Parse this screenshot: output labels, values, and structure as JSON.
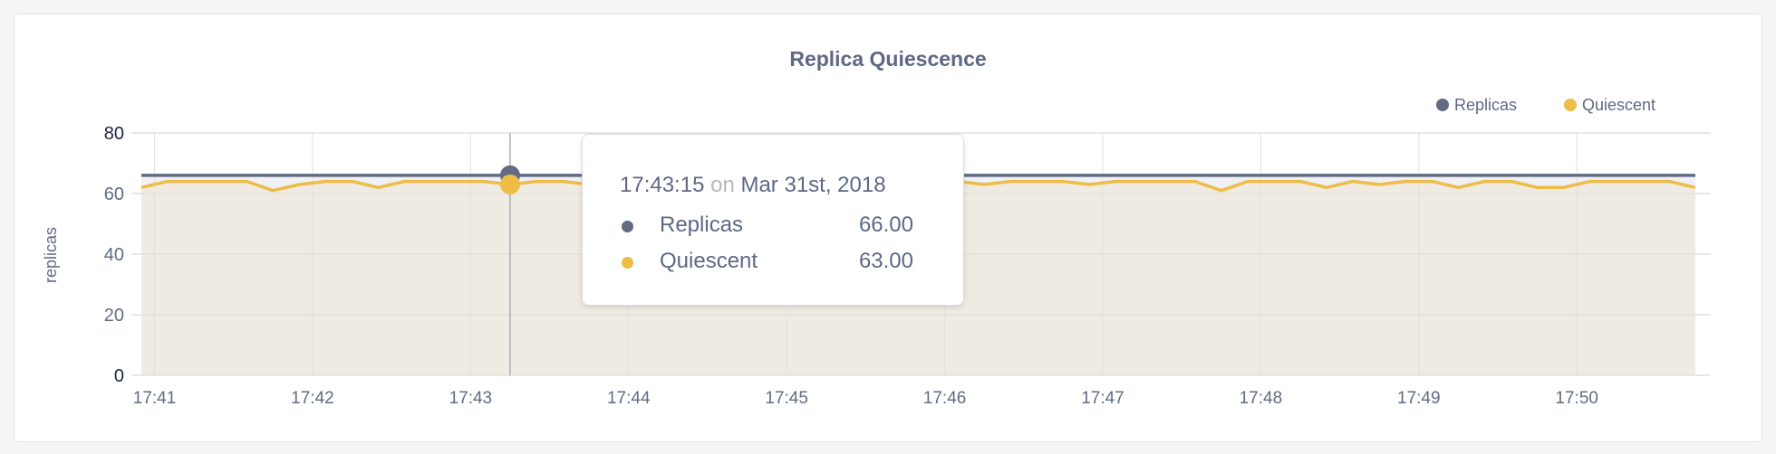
{
  "colors": {
    "replicas": "#636b84",
    "quiescent": "#eebd48",
    "replicas_fill": "#eff1f4",
    "quiescent_fill": "#efebe2",
    "title": "#5f6885"
  },
  "tooltip": {
    "time": "17:43:15",
    "on": "on",
    "date": "Mar 31st, 2018",
    "rows": [
      {
        "label": "Replicas",
        "value": "66.00"
      },
      {
        "label": "Quiescent",
        "value": "63.00"
      }
    ]
  },
  "chart_data": {
    "type": "line",
    "title": "Replica Quiescence",
    "ylabel": "replicas",
    "xlabel": "",
    "ylim": [
      0,
      80
    ],
    "yticks": [
      "0",
      "20",
      "40",
      "60",
      "80"
    ],
    "xticks": [
      "17:41",
      "17:42",
      "17:43",
      "17:44",
      "17:45",
      "17:46",
      "17:47",
      "17:48",
      "17:49",
      "17:50"
    ],
    "xlim": [
      "17:40:55",
      "17:50:45"
    ],
    "grid": true,
    "legend": "top-right",
    "x": [
      "17:40:55",
      "17:41:05",
      "17:41:15",
      "17:41:25",
      "17:41:35",
      "17:41:45",
      "17:41:55",
      "17:42:05",
      "17:42:15",
      "17:42:25",
      "17:42:35",
      "17:42:45",
      "17:42:55",
      "17:43:05",
      "17:43:15",
      "17:43:25",
      "17:43:35",
      "17:43:45",
      "17:43:55",
      "17:44:05",
      "17:44:15",
      "17:44:25",
      "17:44:35",
      "17:44:45",
      "17:44:55",
      "17:45:05",
      "17:45:15",
      "17:45:25",
      "17:45:35",
      "17:45:45",
      "17:45:55",
      "17:46:05",
      "17:46:15",
      "17:46:25",
      "17:46:35",
      "17:46:45",
      "17:46:55",
      "17:47:05",
      "17:47:15",
      "17:47:25",
      "17:47:35",
      "17:47:45",
      "17:47:55",
      "17:48:05",
      "17:48:15",
      "17:48:25",
      "17:48:35",
      "17:48:45",
      "17:48:55",
      "17:49:05",
      "17:49:15",
      "17:49:25",
      "17:49:35",
      "17:49:45",
      "17:49:55",
      "17:50:05",
      "17:50:15",
      "17:50:25",
      "17:50:35",
      "17:50:45"
    ],
    "hover_x": "17:43:15",
    "series": [
      {
        "name": "Replicas",
        "values": [
          66,
          66,
          66,
          66,
          66,
          66,
          66,
          66,
          66,
          66,
          66,
          66,
          66,
          66,
          66,
          66,
          66,
          66,
          66,
          66,
          66,
          66,
          66,
          66,
          66,
          66,
          66,
          66,
          66,
          66,
          66,
          66,
          66,
          66,
          66,
          66,
          66,
          66,
          66,
          66,
          66,
          66,
          66,
          66,
          66,
          66,
          66,
          66,
          66,
          66,
          66,
          66,
          66,
          66,
          66,
          66,
          66,
          66,
          66,
          66
        ]
      },
      {
        "name": "Quiescent",
        "values": [
          62,
          64,
          64,
          64,
          64,
          61,
          63,
          64,
          64,
          62,
          64,
          64,
          64,
          64,
          63,
          64,
          64,
          63,
          64,
          64,
          64,
          64,
          64,
          64,
          64,
          64,
          64,
          64,
          64,
          64,
          64,
          64,
          63,
          64,
          64,
          64,
          63,
          64,
          64,
          64,
          64,
          61,
          64,
          64,
          64,
          62,
          64,
          63,
          64,
          64,
          62,
          64,
          64,
          62,
          62,
          64,
          64,
          64,
          64,
          62
        ]
      }
    ]
  }
}
